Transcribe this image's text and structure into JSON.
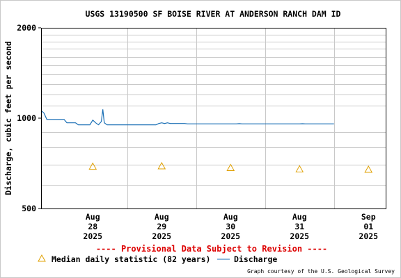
{
  "chart_data": {
    "type": "line",
    "title": "USGS 13190500 SF BOISE RIVER AT ANDERSON RANCH DAM ID",
    "ylabel": "Discharge, cubic feet per second",
    "xlabel": "",
    "y_scale": "log",
    "ylim": [
      500,
      2000
    ],
    "y_ticks": [
      {
        "value": 500,
        "label": "500"
      },
      {
        "value": 1000,
        "label": "1000"
      },
      {
        "value": 2000,
        "label": "2000"
      }
    ],
    "y_minor_gridlines": [
      600,
      700,
      800,
      900,
      1100,
      1200,
      1300,
      1400,
      1500,
      1600,
      1700,
      1800,
      1900
    ],
    "x_range": [
      "2025-08-27T18:00",
      "2025-09-01T18:00"
    ],
    "x_ticks": [
      {
        "date": "2025-08-28T12:00",
        "month": "Aug",
        "day": "28",
        "year": "2025"
      },
      {
        "date": "2025-08-29T12:00",
        "month": "Aug",
        "day": "29",
        "year": "2025"
      },
      {
        "date": "2025-08-30T12:00",
        "month": "Aug",
        "day": "30",
        "year": "2025"
      },
      {
        "date": "2025-08-31T12:00",
        "month": "Aug",
        "day": "31",
        "year": "2025"
      },
      {
        "date": "2025-09-01T12:00",
        "month": "Sep",
        "day": "01",
        "year": "2025"
      }
    ],
    "x_gridlines": [
      "2025-08-29T00:00",
      "2025-08-30T00:00",
      "2025-08-31T00:00",
      "2025-09-01T00:00"
    ],
    "grid": true,
    "series": [
      {
        "name": "Discharge",
        "color": "#1a6fb5",
        "points": [
          {
            "x": "2025-08-27T18:00",
            "y": 1060
          },
          {
            "x": "2025-08-27T19:00",
            "y": 1040
          },
          {
            "x": "2025-08-27T20:00",
            "y": 990
          },
          {
            "x": "2025-08-28T02:00",
            "y": 990
          },
          {
            "x": "2025-08-28T03:00",
            "y": 965
          },
          {
            "x": "2025-08-28T06:00",
            "y": 965
          },
          {
            "x": "2025-08-28T07:00",
            "y": 950
          },
          {
            "x": "2025-08-28T11:00",
            "y": 950
          },
          {
            "x": "2025-08-28T12:00",
            "y": 985
          },
          {
            "x": "2025-08-28T13:00",
            "y": 965
          },
          {
            "x": "2025-08-28T14:00",
            "y": 950
          },
          {
            "x": "2025-08-28T15:00",
            "y": 975
          },
          {
            "x": "2025-08-28T15:30",
            "y": 1070
          },
          {
            "x": "2025-08-28T16:00",
            "y": 965
          },
          {
            "x": "2025-08-28T17:00",
            "y": 950
          },
          {
            "x": "2025-08-29T10:00",
            "y": 950
          },
          {
            "x": "2025-08-29T11:00",
            "y": 960
          },
          {
            "x": "2025-08-29T12:00",
            "y": 965
          },
          {
            "x": "2025-08-29T13:00",
            "y": 960
          },
          {
            "x": "2025-08-29T14:00",
            "y": 965
          },
          {
            "x": "2025-08-29T15:00",
            "y": 960
          },
          {
            "x": "2025-08-29T20:00",
            "y": 960
          },
          {
            "x": "2025-08-29T21:00",
            "y": 957
          },
          {
            "x": "2025-08-30T14:00",
            "y": 957
          },
          {
            "x": "2025-08-30T15:00",
            "y": 959
          },
          {
            "x": "2025-08-30T16:00",
            "y": 957
          },
          {
            "x": "2025-08-31T12:00",
            "y": 957
          },
          {
            "x": "2025-08-31T13:00",
            "y": 958
          },
          {
            "x": "2025-08-31T14:00",
            "y": 957
          },
          {
            "x": "2025-09-01T00:00",
            "y": 957
          }
        ]
      },
      {
        "name": "Median daily statistic (82 years)",
        "color": "#e0a000",
        "marker": "triangle",
        "points": [
          {
            "x": "2025-08-28T12:00",
            "y": 690
          },
          {
            "x": "2025-08-29T12:00",
            "y": 692
          },
          {
            "x": "2025-08-30T12:00",
            "y": 683
          },
          {
            "x": "2025-08-31T12:00",
            "y": 676
          },
          {
            "x": "2025-09-01T12:00",
            "y": 674
          }
        ]
      }
    ],
    "legend_placement": "bottom",
    "provisional_note": "---- Provisional Data Subject to Revision ----",
    "credit": "Graph courtesy of the U.S. Geological Survey"
  }
}
